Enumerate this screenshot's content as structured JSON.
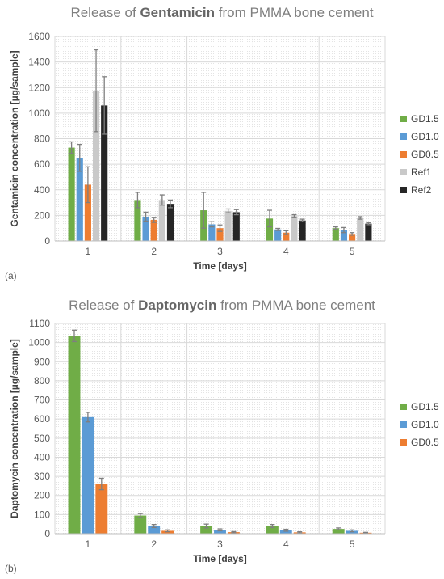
{
  "chart_data": [
    {
      "type": "bar",
      "tag": "(a)",
      "title_pre": "Release of ",
      "title_bold": "Gentamicin",
      "title_post": " from PMMA bone cement",
      "xlabel": "Time [days]",
      "ylabel": "Gentamicin concentration [µg/sample]",
      "categories": [
        "1",
        "2",
        "3",
        "4",
        "5"
      ],
      "ylim": [
        0,
        1600
      ],
      "yticks": [
        0,
        200,
        400,
        600,
        800,
        1000,
        1200,
        1400,
        1600
      ],
      "grid": true,
      "legend_position": "right",
      "series": [
        {
          "name": "GD1.5",
          "color": "#70ad47",
          "values": [
            730,
            320,
            240,
            175,
            100
          ],
          "errors": [
            45,
            60,
            140,
            65,
            10
          ]
        },
        {
          "name": "GD1.0",
          "color": "#5b9bd5",
          "values": [
            650,
            190,
            130,
            90,
            85
          ],
          "errors": [
            105,
            35,
            20,
            8,
            20
          ]
        },
        {
          "name": "GD0.5",
          "color": "#ed7d31",
          "values": [
            440,
            165,
            100,
            65,
            55
          ],
          "errors": [
            140,
            20,
            25,
            15,
            10
          ]
        },
        {
          "name": "Ref1",
          "color": "#c9c9c9",
          "values": [
            1175,
            320,
            235,
            195,
            180
          ],
          "errors": [
            320,
            40,
            15,
            10,
            10
          ]
        },
        {
          "name": "Ref2",
          "color": "#262626",
          "values": [
            1060,
            290,
            225,
            160,
            135
          ],
          "errors": [
            225,
            30,
            20,
            10,
            8
          ]
        }
      ]
    },
    {
      "type": "bar",
      "tag": "(b)",
      "title_pre": "Release of ",
      "title_bold": "Daptomycin",
      "title_post": " from PMMA bone cement",
      "xlabel": "Time [days]",
      "ylabel": "Daptomycin concentration [µg/sample]",
      "categories": [
        "1",
        "2",
        "3",
        "4",
        "5"
      ],
      "ylim": [
        0,
        1100
      ],
      "yticks": [
        0,
        100,
        200,
        300,
        400,
        500,
        600,
        700,
        800,
        900,
        1000,
        1100
      ],
      "grid": true,
      "legend_position": "right",
      "series": [
        {
          "name": "GD1.5",
          "color": "#70ad47",
          "values": [
            1035,
            95,
            40,
            40,
            25
          ],
          "errors": [
            30,
            10,
            10,
            8,
            5
          ]
        },
        {
          "name": "GD1.0",
          "color": "#5b9bd5",
          "values": [
            610,
            40,
            20,
            18,
            15
          ],
          "errors": [
            25,
            8,
            5,
            5,
            5
          ]
        },
        {
          "name": "GD0.5",
          "color": "#ed7d31",
          "values": [
            260,
            15,
            8,
            7,
            5
          ],
          "errors": [
            30,
            5,
            3,
            3,
            2
          ]
        }
      ]
    }
  ]
}
